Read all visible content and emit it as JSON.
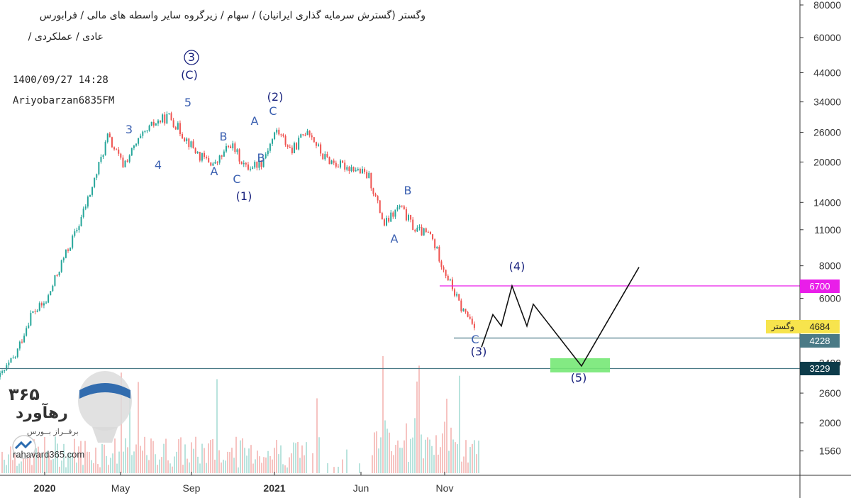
{
  "header": {
    "breadcrumb_line1": "وگستر (گسترش سرمایه گذاری ایرانیان) / سهام / زیرگروه سایر واسطه های مالی / فرابورس",
    "breadcrumb_line2": "عادی / عملکردی /",
    "trailing_slash": "/"
  },
  "meta": {
    "datetime": "1400/09/27 14:28",
    "author": "Ariyobarzan6835FM"
  },
  "axis": {
    "y_ticks": [
      "80000",
      "60000",
      "44000",
      "34000",
      "26000",
      "20000",
      "14000",
      "11000",
      "8000",
      "6000",
      "3400",
      "2600",
      "2000",
      "1560"
    ],
    "x_ticks": [
      "2020",
      "May",
      "Sep",
      "2021",
      "Jun",
      "Nov"
    ]
  },
  "price_labels": {
    "level_6700": "6700",
    "current_price": "4684",
    "ticker_name": "وگستر",
    "level_4228": "4228",
    "level_3229": "3229"
  },
  "colors": {
    "candle_up": "#26a69a",
    "candle_down": "#ef5350",
    "wave_label": "#3a5fb0",
    "wave_label_dark": "#1a237e",
    "magenta_line": "#e91ee9",
    "teal_line": "#4a7a86",
    "target_box": "#76e876",
    "box_6700": "#e91ee9",
    "box_4228": "#4a7a86",
    "box_3229": "#0d3b4a",
    "box_current": "#f7e44d"
  },
  "wave_labels": [
    {
      "text": "3",
      "circled": true
    },
    {
      "text": "(C)"
    },
    {
      "text": "3"
    },
    {
      "text": "4"
    },
    {
      "text": "5"
    },
    {
      "text": "A"
    },
    {
      "text": "B"
    },
    {
      "text": "C"
    },
    {
      "text": "(1)"
    },
    {
      "text": "A"
    },
    {
      "text": "B"
    },
    {
      "text": "(2)"
    },
    {
      "text": "C"
    },
    {
      "text": "A"
    },
    {
      "text": "B"
    },
    {
      "text": "C"
    },
    {
      "text": "(3)"
    },
    {
      "text": "(4)"
    },
    {
      "text": "(5)"
    }
  ],
  "logo": {
    "number": "۳۶۵",
    "brand": "رهآورد",
    "tagline": "برفــراز بــورس",
    "url": "rahavard365.com"
  },
  "chart_data": {
    "type": "line",
    "scale": "log",
    "ylim": [
      1200,
      90000
    ],
    "x_ticks": [
      "2020",
      "May",
      "Sep",
      "2021",
      "Jun",
      "Nov"
    ],
    "price_path": [
      [
        "2019-12",
        3000
      ],
      [
        "2020-01",
        3600
      ],
      [
        "2020-02",
        5200
      ],
      [
        "2020-03",
        5800
      ],
      [
        "2020-03b",
        8200
      ],
      [
        "2020-04",
        11000
      ],
      [
        "2020-04b",
        16000
      ],
      [
        "2020-05",
        25000
      ],
      [
        "2020-05b",
        19500
      ],
      [
        "2020-06",
        24000
      ],
      [
        "2020-07",
        28000
      ],
      [
        "2020-08",
        30000
      ],
      [
        "2020-08b",
        25000
      ],
      [
        "2020-09",
        21000
      ],
      [
        "2020-09b",
        19500
      ],
      [
        "2020-10",
        23500
      ],
      [
        "2020-10b",
        19000
      ],
      [
        "2020-11",
        20000
      ],
      [
        "2020-11b",
        26500
      ],
      [
        "2020-12",
        22000
      ],
      [
        "2021-01",
        27000
      ],
      [
        "2021-01b",
        21000
      ],
      [
        "2021-02",
        19500
      ],
      [
        "2021-03",
        19000
      ],
      [
        "2021-05",
        17500
      ],
      [
        "2021-06",
        11500
      ],
      [
        "2021-07",
        13500
      ],
      [
        "2021-08",
        11000
      ],
      [
        "2021-09",
        10500
      ],
      [
        "2021-10",
        7500
      ],
      [
        "2021-11",
        5500
      ],
      [
        "2021-12",
        4700
      ]
    ],
    "projection": [
      3900,
      5200,
      4700,
      6700,
      4700,
      5700,
      3300,
      7900
    ],
    "levels": [
      {
        "name": "6700",
        "value": 6700,
        "color": "#e91ee9"
      },
      {
        "name": "4228",
        "value": 4228,
        "color": "#4a7a86"
      },
      {
        "name": "3229",
        "value": 3229,
        "color": "#4a7a86"
      }
    ],
    "current_price": 4684
  }
}
